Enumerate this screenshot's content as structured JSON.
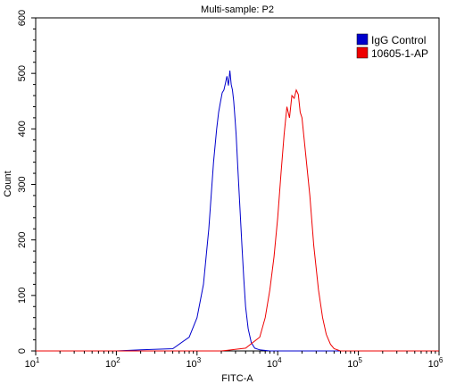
{
  "chart_data": {
    "type": "line",
    "title": "Multi-sample: P2",
    "xlabel": "FITC-A",
    "ylabel": "Count",
    "xscale": "log",
    "xlim": [
      10,
      1000000
    ],
    "ylim": [
      0,
      600
    ],
    "x_ticks": [
      {
        "value": 10,
        "base": "10",
        "exp": "1"
      },
      {
        "value": 100,
        "base": "10",
        "exp": "2"
      },
      {
        "value": 1000,
        "base": "10",
        "exp": "3"
      },
      {
        "value": 10000,
        "base": "10",
        "exp": "4"
      },
      {
        "value": 100000,
        "base": "10",
        "exp": "5"
      },
      {
        "value": 1000000,
        "base": "10",
        "exp": "6"
      }
    ],
    "y_ticks": [
      0,
      100,
      200,
      300,
      400,
      500,
      600
    ],
    "grid": false,
    "legend_position": "top-right",
    "series": [
      {
        "name": "IgG Control",
        "color": "#0000cc",
        "x": [
          100,
          200,
          500,
          800,
          1000,
          1200,
          1400,
          1600,
          1750,
          1850,
          1950,
          2050,
          2150,
          2250,
          2350,
          2450,
          2550,
          2650,
          2750,
          2850,
          2950,
          3050,
          3200,
          3400,
          3600,
          3800,
          4000,
          4300,
          4700,
          5200,
          6000,
          8000
        ],
        "y": [
          0,
          2,
          4,
          25,
          60,
          120,
          220,
          340,
          400,
          430,
          448,
          465,
          470,
          482,
          495,
          478,
          505,
          480,
          470,
          450,
          420,
          390,
          330,
          260,
          190,
          130,
          80,
          40,
          15,
          5,
          2,
          0
        ]
      },
      {
        "name": "10605-1-AP",
        "color": "#ee0000",
        "x": [
          2000,
          4000,
          6000,
          7000,
          8000,
          9000,
          10000,
          11000,
          12000,
          13000,
          14000,
          15000,
          16000,
          17000,
          18000,
          19000,
          20000,
          22000,
          25000,
          28000,
          32000,
          36000,
          40000,
          45000,
          50000,
          60000
        ],
        "y": [
          0,
          5,
          25,
          60,
          110,
          170,
          240,
          320,
          390,
          440,
          420,
          460,
          455,
          470,
          462,
          430,
          420,
          360,
          280,
          190,
          110,
          60,
          30,
          12,
          4,
          0
        ]
      }
    ]
  }
}
